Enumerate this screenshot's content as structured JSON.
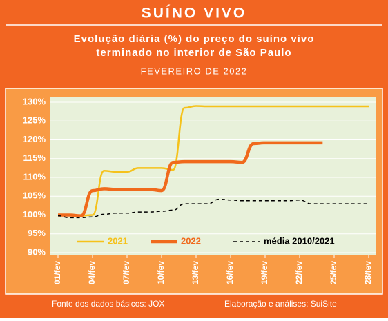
{
  "chart_data": {
    "type": "line",
    "title": "SUÍNO VIVO",
    "subtitle": [
      "Evolução diária (%) do preço do suíno vivo",
      "terminado no interior de São Paulo"
    ],
    "period": "FEVEREIRO DE 2022",
    "source": "Fonte dos dados básicos: JOX",
    "credit": "Elaboração e análises: SuiSite",
    "x": [
      1,
      2,
      3,
      4,
      5,
      6,
      7,
      8,
      9,
      10,
      11,
      12,
      13,
      14,
      15,
      16,
      17,
      18,
      19,
      20,
      21,
      22,
      23,
      24,
      25,
      26,
      27,
      28
    ],
    "xlim": [
      1,
      28
    ],
    "xticks": [
      {
        "value": 1,
        "label": "01/fev"
      },
      {
        "value": 4,
        "label": "04/fev"
      },
      {
        "value": 7,
        "label": "07/fev"
      },
      {
        "value": 10,
        "label": "10/fev"
      },
      {
        "value": 13,
        "label": "13/fev"
      },
      {
        "value": 16,
        "label": "16/fev"
      },
      {
        "value": 19,
        "label": "19/fev"
      },
      {
        "value": 22,
        "label": "22/fev"
      },
      {
        "value": 25,
        "label": "25/fev"
      },
      {
        "value": 28,
        "label": "28/fev"
      }
    ],
    "ylim": [
      90,
      130
    ],
    "yticks": [
      {
        "value": 90,
        "label": "90%"
      },
      {
        "value": 95,
        "label": "95%"
      },
      {
        "value": 100,
        "label": "100%"
      },
      {
        "value": 105,
        "label": "105%"
      },
      {
        "value": 110,
        "label": "110%"
      },
      {
        "value": 115,
        "label": "115%"
      },
      {
        "value": 120,
        "label": "120%"
      },
      {
        "value": 125,
        "label": "125%"
      },
      {
        "value": 130,
        "label": "130%"
      }
    ],
    "grid": true,
    "series": [
      {
        "name": "2021",
        "color": "#f5c21b",
        "width": 2.5,
        "dash": false,
        "values": [
          100,
          100,
          99.8,
          100,
          111.8,
          111.5,
          111.5,
          112.5,
          112.5,
          112.5,
          112,
          128.5,
          129,
          128.9,
          128.9,
          128.9,
          128.9,
          128.9,
          128.9,
          128.9,
          128.9,
          128.9,
          128.9,
          128.9,
          128.9,
          128.9,
          128.9,
          128.9
        ]
      },
      {
        "name": "2022",
        "color": "#f06a1c",
        "width": 4.5,
        "dash": false,
        "values": [
          100,
          100,
          99.8,
          106.5,
          107,
          106.8,
          106.8,
          106.8,
          106.8,
          106.5,
          114,
          114.2,
          114.2,
          114.2,
          114.2,
          114.2,
          114,
          119,
          119.2,
          119.2,
          119.2,
          119.2,
          119.2,
          119.2,
          null,
          null,
          null,
          null
        ]
      },
      {
        "name": "média 2010/2021",
        "color": "#000000",
        "width": 1.5,
        "dash": true,
        "values": [
          99.8,
          99.3,
          99.3,
          99.5,
          100.2,
          100.5,
          100.5,
          100.8,
          100.8,
          101,
          101.3,
          103,
          103,
          103,
          104.2,
          104,
          103.8,
          103.8,
          103.8,
          103.8,
          103.8,
          104,
          103,
          103,
          103,
          103,
          103,
          103
        ]
      }
    ]
  }
}
